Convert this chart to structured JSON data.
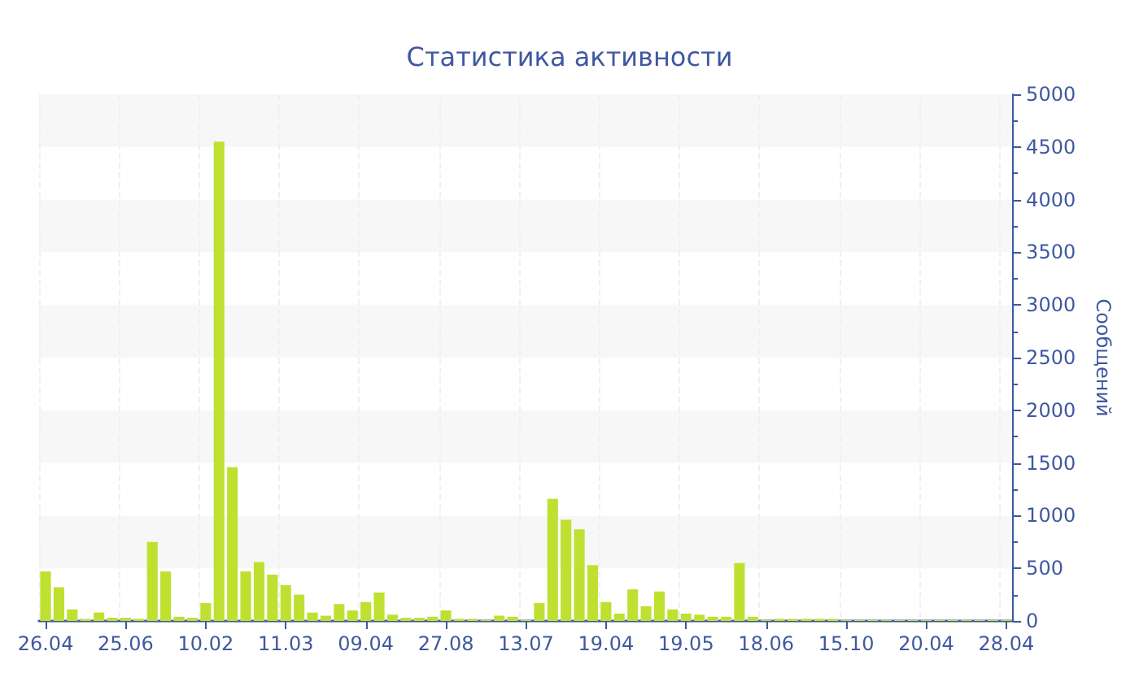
{
  "chart_data": {
    "type": "bar",
    "title": "Статистика активности",
    "ylabel": "Сообщений",
    "categories": [
      "26.04",
      null,
      null,
      null,
      null,
      null,
      "25.06",
      null,
      null,
      null,
      null,
      null,
      "10.02",
      null,
      null,
      null,
      null,
      null,
      "11.03",
      null,
      null,
      null,
      null,
      null,
      "09.04",
      null,
      null,
      null,
      null,
      null,
      "27.08",
      null,
      null,
      null,
      null,
      null,
      "13.07",
      null,
      null,
      null,
      null,
      null,
      "19.04",
      null,
      null,
      null,
      null,
      null,
      "19.05",
      null,
      null,
      null,
      null,
      null,
      "18.06",
      null,
      null,
      null,
      null,
      null,
      "15.10",
      null,
      null,
      null,
      null,
      null,
      "20.04",
      null,
      null,
      null,
      null,
      null,
      "28.04"
    ],
    "values": [
      470,
      320,
      110,
      20,
      80,
      30,
      30,
      20,
      750,
      470,
      40,
      30,
      170,
      4550,
      1460,
      470,
      560,
      440,
      340,
      250,
      80,
      50,
      160,
      100,
      180,
      270,
      60,
      30,
      30,
      40,
      100,
      20,
      20,
      10,
      50,
      40,
      10,
      170,
      1160,
      960,
      870,
      530,
      180,
      70,
      300,
      140,
      280,
      110,
      70,
      60,
      40,
      40,
      550,
      40,
      10,
      20,
      20,
      20,
      20,
      20,
      10,
      10,
      10,
      10,
      10,
      10,
      10,
      10,
      10,
      10,
      10,
      10,
      10
    ],
    "color": "#bfe030",
    "ylim": [
      0,
      5000
    ],
    "yticks": [
      0,
      500,
      1000,
      1500,
      2000,
      2500,
      3000,
      3500,
      4000,
      4500,
      5000
    ],
    "grid": true
  }
}
